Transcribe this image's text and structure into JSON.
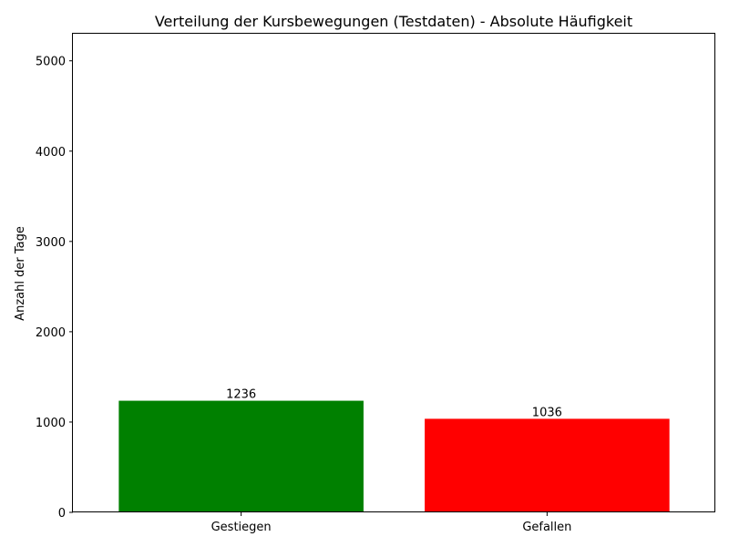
{
  "chart_data": {
    "type": "bar",
    "title": "Verteilung der Kursbewegungen (Testdaten) - Absolute Häufigkeit",
    "xlabel": "",
    "ylabel": "Anzahl der Tage",
    "categories": [
      "Gestiegen",
      "Gefallen"
    ],
    "values": [
      1236,
      1036
    ],
    "data_labels": [
      "1236",
      "1036"
    ],
    "colors": [
      "#008000",
      "#ff0000"
    ],
    "ylim": [
      0,
      5300
    ],
    "yticks": [
      0,
      1000,
      2000,
      3000,
      4000,
      5000
    ],
    "ytick_labels": [
      "0",
      "1000",
      "2000",
      "3000",
      "4000",
      "5000"
    ],
    "grid": false,
    "legend": "none"
  }
}
